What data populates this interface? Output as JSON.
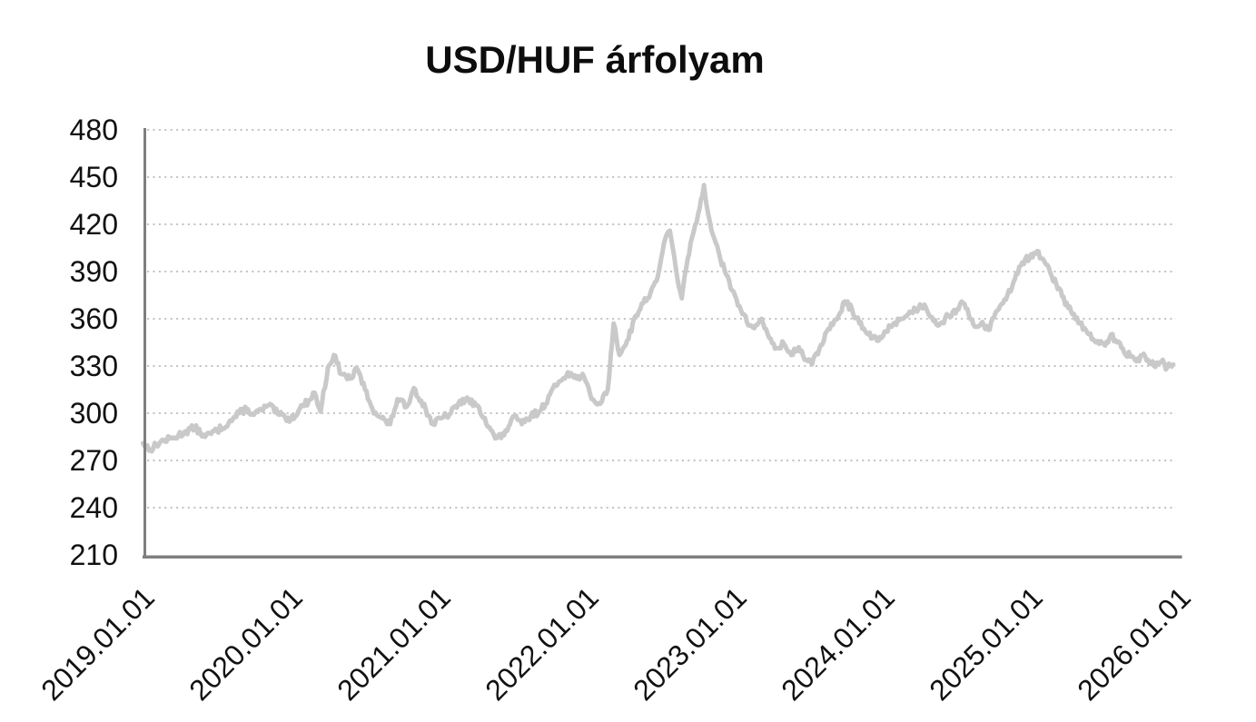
{
  "page": {
    "background": "#ffffff"
  },
  "chart_data": {
    "type": "line",
    "title": "USD/HUF árfolyam",
    "series_name": "USD/HUF",
    "xlabel": "",
    "ylabel": "",
    "legend": "none",
    "grid": "horizontal-dotted",
    "line_color": "#c9c9c9",
    "axis_color": "#7f7f7f",
    "gridline_color": "#c6c6c6",
    "label_color": "#111111",
    "ylim": [
      210,
      480
    ],
    "ytick_step": 30,
    "yticks": [
      480,
      450,
      420,
      390,
      360,
      330,
      300,
      270,
      240,
      210
    ],
    "xticks": [
      "2019.01.01",
      "2020.01.01",
      "2021.01.01",
      "2022.01.01",
      "2023.01.01",
      "2024.01.01",
      "2025.01.01",
      "2026.01.01"
    ],
    "points": [
      [
        2019.0,
        281
      ],
      [
        2019.05,
        277
      ],
      [
        2019.12,
        282
      ],
      [
        2019.2,
        284
      ],
      [
        2019.28,
        288
      ],
      [
        2019.35,
        291
      ],
      [
        2019.42,
        285
      ],
      [
        2019.5,
        289
      ],
      [
        2019.58,
        294
      ],
      [
        2019.65,
        300
      ],
      [
        2019.7,
        303
      ],
      [
        2019.75,
        299
      ],
      [
        2019.8,
        302
      ],
      [
        2019.85,
        305
      ],
      [
        2019.92,
        299
      ],
      [
        2020.0,
        296
      ],
      [
        2020.06,
        303
      ],
      [
        2020.12,
        308
      ],
      [
        2020.16,
        313
      ],
      [
        2020.2,
        301
      ],
      [
        2020.25,
        329
      ],
      [
        2020.29,
        337
      ],
      [
        2020.34,
        325
      ],
      [
        2020.4,
        322
      ],
      [
        2020.45,
        328
      ],
      [
        2020.5,
        315
      ],
      [
        2020.55,
        303
      ],
      [
        2020.61,
        297
      ],
      [
        2020.67,
        293
      ],
      [
        2020.72,
        309
      ],
      [
        2020.78,
        304
      ],
      [
        2020.83,
        316
      ],
      [
        2020.88,
        308
      ],
      [
        2020.96,
        293
      ],
      [
        2021.02,
        297
      ],
      [
        2021.08,
        300
      ],
      [
        2021.13,
        306
      ],
      [
        2021.18,
        309
      ],
      [
        2021.25,
        305
      ],
      [
        2021.31,
        297
      ],
      [
        2021.38,
        284
      ],
      [
        2021.44,
        286
      ],
      [
        2021.5,
        298
      ],
      [
        2021.56,
        293
      ],
      [
        2021.62,
        298
      ],
      [
        2021.69,
        302
      ],
      [
        2021.75,
        312
      ],
      [
        2021.81,
        320
      ],
      [
        2021.87,
        326
      ],
      [
        2021.93,
        322
      ],
      [
        2021.97,
        325
      ],
      [
        2022.03,
        309
      ],
      [
        2022.09,
        306
      ],
      [
        2022.14,
        315
      ],
      [
        2022.18,
        357
      ],
      [
        2022.22,
        337
      ],
      [
        2022.27,
        346
      ],
      [
        2022.33,
        362
      ],
      [
        2022.38,
        370
      ],
      [
        2022.43,
        377
      ],
      [
        2022.47,
        384
      ],
      [
        2022.52,
        408
      ],
      [
        2022.56,
        416
      ],
      [
        2022.6,
        392
      ],
      [
        2022.64,
        373
      ],
      [
        2022.68,
        398
      ],
      [
        2022.72,
        415
      ],
      [
        2022.76,
        430
      ],
      [
        2022.79,
        445
      ],
      [
        2022.82,
        426
      ],
      [
        2022.86,
        411
      ],
      [
        2022.9,
        398
      ],
      [
        2022.94,
        388
      ],
      [
        2022.98,
        378
      ],
      [
        2023.03,
        368
      ],
      [
        2023.08,
        358
      ],
      [
        2023.13,
        354
      ],
      [
        2023.18,
        360
      ],
      [
        2023.23,
        348
      ],
      [
        2023.27,
        341
      ],
      [
        2023.33,
        344
      ],
      [
        2023.38,
        337
      ],
      [
        2023.43,
        342
      ],
      [
        2023.48,
        334
      ],
      [
        2023.52,
        331
      ],
      [
        2023.57,
        341
      ],
      [
        2023.62,
        352
      ],
      [
        2023.66,
        356
      ],
      [
        2023.7,
        362
      ],
      [
        2023.74,
        371
      ],
      [
        2023.79,
        366
      ],
      [
        2023.84,
        357
      ],
      [
        2023.9,
        350
      ],
      [
        2023.96,
        346
      ],
      [
        2024.02,
        352
      ],
      [
        2024.07,
        357
      ],
      [
        2024.12,
        360
      ],
      [
        2024.17,
        363
      ],
      [
        2024.22,
        366
      ],
      [
        2024.28,
        369
      ],
      [
        2024.33,
        361
      ],
      [
        2024.38,
        356
      ],
      [
        2024.44,
        362
      ],
      [
        2024.5,
        366
      ],
      [
        2024.54,
        370
      ],
      [
        2024.58,
        362
      ],
      [
        2024.63,
        355
      ],
      [
        2024.67,
        358
      ],
      [
        2024.71,
        353
      ],
      [
        2024.75,
        361
      ],
      [
        2024.79,
        368
      ],
      [
        2024.84,
        375
      ],
      [
        2024.88,
        383
      ],
      [
        2024.92,
        393
      ],
      [
        2024.96,
        398
      ],
      [
        2025.01,
        399
      ],
      [
        2025.04,
        403
      ],
      [
        2025.08,
        398
      ],
      [
        2025.13,
        389
      ],
      [
        2025.17,
        382
      ],
      [
        2025.21,
        374
      ],
      [
        2025.25,
        367
      ],
      [
        2025.29,
        363
      ],
      [
        2025.33,
        357
      ],
      [
        2025.38,
        351
      ],
      [
        2025.42,
        347
      ],
      [
        2025.46,
        344
      ],
      [
        2025.5,
        343
      ],
      [
        2025.54,
        350
      ],
      [
        2025.58,
        345
      ],
      [
        2025.62,
        341
      ],
      [
        2025.67,
        336
      ],
      [
        2025.71,
        333
      ],
      [
        2025.75,
        337
      ],
      [
        2025.79,
        334
      ],
      [
        2025.83,
        330
      ],
      [
        2025.88,
        333
      ],
      [
        2025.92,
        329
      ],
      [
        2025.96,
        331
      ]
    ]
  }
}
